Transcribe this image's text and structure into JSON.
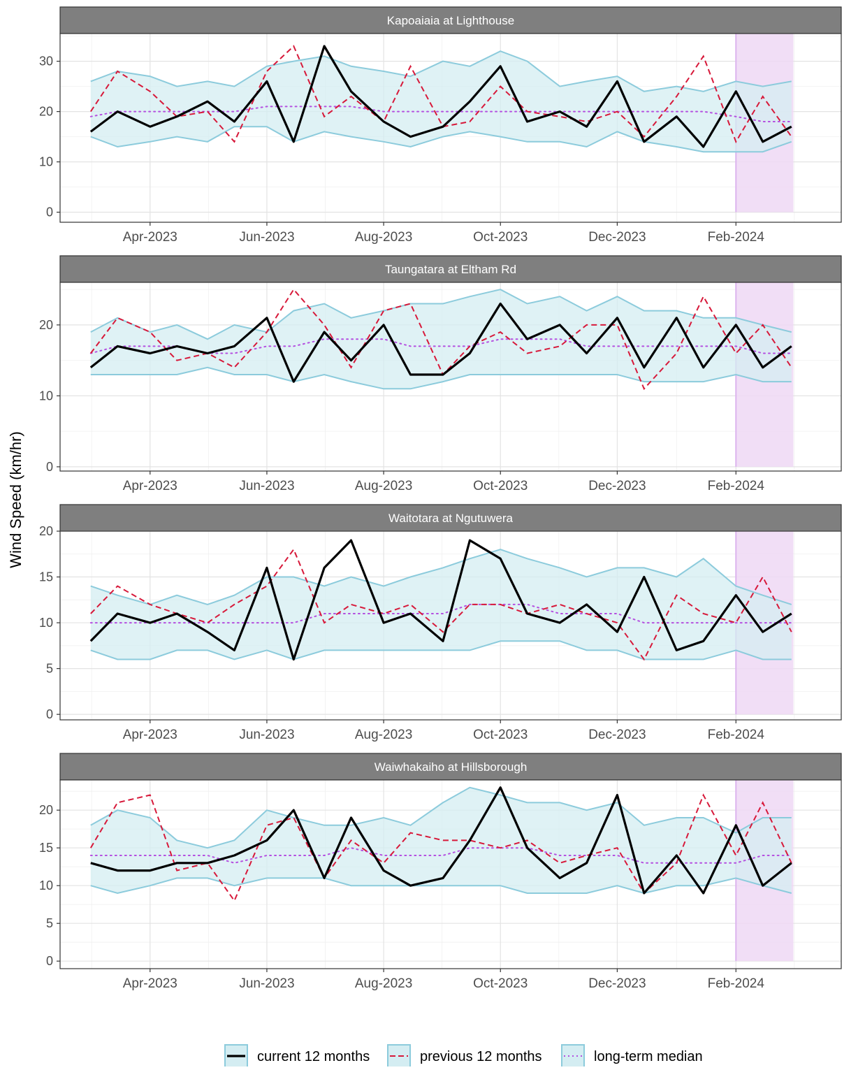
{
  "chart_data": {
    "type": "line",
    "ylabel": "Wind Speed (km/hr)",
    "x_range": [
      "2023-02-13",
      "2024-03-27"
    ],
    "x_ticks": [
      {
        "date": "2023-04-01",
        "label": "Apr-2023"
      },
      {
        "date": "2023-06-01",
        "label": "Jun-2023"
      },
      {
        "date": "2023-08-01",
        "label": "Aug-2023"
      },
      {
        "date": "2023-10-01",
        "label": "Oct-2023"
      },
      {
        "date": "2023-12-01",
        "label": "Dec-2023"
      },
      {
        "date": "2024-02-01",
        "label": "Feb-2024"
      }
    ],
    "highlight_period": {
      "start": "2024-02-01",
      "end": "2024-03-02",
      "color": "#eed8f5"
    },
    "series_styles": {
      "current": {
        "color": "#000000",
        "dash": "solid"
      },
      "previous": {
        "color": "#d7193a",
        "dash": "dashed"
      },
      "median": {
        "color": "#b44fe0",
        "dash": "dotted"
      },
      "band": {
        "fill": "#d4edf2",
        "stroke": "#8ccbdc"
      }
    },
    "legend": {
      "position": "bottom",
      "items": [
        {
          "key": "current",
          "label": "current 12 months"
        },
        {
          "key": "previous",
          "label": "previous 12 months"
        },
        {
          "key": "median",
          "label": "long-term median"
        }
      ]
    },
    "panels": [
      {
        "title": "Kapoaiaia at Lighthouse",
        "ylim": [
          -2,
          35.5
        ],
        "y_ticks": [
          0,
          10,
          20,
          30
        ],
        "x": [
          "2023-03-01",
          "2023-03-15",
          "2023-04-01",
          "2023-04-15",
          "2023-05-01",
          "2023-05-15",
          "2023-06-01",
          "2023-06-15",
          "2023-07-01",
          "2023-07-15",
          "2023-08-01",
          "2023-08-15",
          "2023-09-01",
          "2023-09-15",
          "2023-10-01",
          "2023-10-15",
          "2023-11-01",
          "2023-11-15",
          "2023-12-01",
          "2023-12-15",
          "2024-01-01",
          "2024-01-15",
          "2024-02-01",
          "2024-02-15",
          "2024-03-01"
        ],
        "current": [
          16,
          20,
          17,
          19,
          22,
          18,
          26,
          14,
          33,
          24,
          18,
          15,
          17,
          22,
          29,
          18,
          20,
          17,
          26,
          14,
          19,
          13,
          24,
          14,
          17
        ],
        "previous": [
          20,
          28,
          24,
          19,
          20,
          14,
          28,
          33,
          19,
          23,
          18,
          29,
          17,
          18,
          25,
          20,
          19,
          18,
          20,
          15,
          23,
          31,
          14,
          23,
          15
        ],
        "median": [
          19,
          20,
          20,
          20,
          20,
          20,
          21,
          21,
          21,
          21,
          20,
          20,
          20,
          20,
          20,
          20,
          20,
          20,
          20,
          20,
          20,
          20,
          19,
          18,
          18
        ],
        "band_low": [
          15,
          13,
          14,
          15,
          14,
          17,
          17,
          14,
          16,
          15,
          14,
          13,
          15,
          16,
          15,
          14,
          14,
          13,
          16,
          14,
          13,
          12,
          12,
          12,
          14
        ],
        "band_high": [
          26,
          28,
          27,
          25,
          26,
          25,
          29,
          30,
          31,
          29,
          28,
          27,
          30,
          29,
          32,
          30,
          25,
          26,
          27,
          24,
          25,
          24,
          26,
          25,
          26
        ]
      },
      {
        "title": "Taungatara at Eltham Rd",
        "ylim": [
          -0.6,
          26
        ],
        "y_ticks": [
          0,
          10,
          20
        ],
        "x": [
          "2023-03-01",
          "2023-03-15",
          "2023-04-01",
          "2023-04-15",
          "2023-05-01",
          "2023-05-15",
          "2023-06-01",
          "2023-06-15",
          "2023-07-01",
          "2023-07-15",
          "2023-08-01",
          "2023-08-15",
          "2023-09-01",
          "2023-09-15",
          "2023-10-01",
          "2023-10-15",
          "2023-11-01",
          "2023-11-15",
          "2023-12-01",
          "2023-12-15",
          "2024-01-01",
          "2024-01-15",
          "2024-02-01",
          "2024-02-15",
          "2024-03-01"
        ],
        "current": [
          14,
          17,
          16,
          17,
          16,
          17,
          21,
          12,
          19,
          15,
          20,
          13,
          13,
          16,
          23,
          18,
          20,
          16,
          21,
          14,
          21,
          14,
          20,
          14,
          17
        ],
        "previous": [
          16,
          21,
          19,
          15,
          16,
          14,
          19,
          25,
          20,
          14,
          22,
          23,
          13,
          17,
          19,
          16,
          17,
          20,
          20,
          11,
          16,
          24,
          16,
          20,
          14
        ],
        "median": [
          16,
          17,
          17,
          17,
          16,
          16,
          17,
          17,
          18,
          18,
          18,
          17,
          17,
          17,
          18,
          18,
          18,
          17,
          17,
          17,
          17,
          17,
          17,
          16,
          16
        ],
        "band_low": [
          13,
          13,
          13,
          13,
          14,
          13,
          13,
          12,
          13,
          12,
          11,
          11,
          12,
          13,
          13,
          13,
          13,
          13,
          13,
          12,
          12,
          12,
          13,
          12,
          12
        ],
        "band_high": [
          19,
          21,
          19,
          20,
          18,
          20,
          19,
          22,
          23,
          21,
          22,
          23,
          23,
          24,
          25,
          23,
          24,
          22,
          24,
          22,
          22,
          21,
          21,
          20,
          19
        ]
      },
      {
        "title": "Waitotara at Ngutuwera",
        "ylim": [
          -0.6,
          20
        ],
        "y_ticks": [
          0,
          5,
          10,
          15,
          20
        ],
        "x": [
          "2023-03-01",
          "2023-03-15",
          "2023-04-01",
          "2023-04-15",
          "2023-05-01",
          "2023-05-15",
          "2023-06-01",
          "2023-06-15",
          "2023-07-01",
          "2023-07-15",
          "2023-08-01",
          "2023-08-15",
          "2023-09-01",
          "2023-09-15",
          "2023-10-01",
          "2023-10-15",
          "2023-11-01",
          "2023-11-15",
          "2023-12-01",
          "2023-12-15",
          "2024-01-01",
          "2024-01-15",
          "2024-02-01",
          "2024-02-15",
          "2024-03-01"
        ],
        "current": [
          8,
          11,
          10,
          11,
          9,
          7,
          16,
          6,
          16,
          19,
          10,
          11,
          8,
          19,
          17,
          11,
          10,
          12,
          9,
          15,
          7,
          8,
          13,
          9,
          11
        ],
        "previous": [
          11,
          14,
          12,
          11,
          10,
          12,
          14,
          18,
          10,
          12,
          11,
          12,
          9,
          12,
          12,
          11,
          12,
          11,
          10,
          6,
          13,
          11,
          10,
          15,
          9
        ],
        "median": [
          10,
          10,
          10,
          10,
          10,
          10,
          10,
          10,
          11,
          11,
          11,
          11,
          11,
          12,
          12,
          12,
          11,
          11,
          11,
          10,
          10,
          10,
          10,
          10,
          10
        ],
        "band_low": [
          7,
          6,
          6,
          7,
          7,
          6,
          7,
          6,
          7,
          7,
          7,
          7,
          7,
          7,
          8,
          8,
          8,
          7,
          7,
          6,
          6,
          6,
          7,
          6,
          6
        ],
        "band_high": [
          14,
          13,
          12,
          13,
          12,
          13,
          15,
          15,
          14,
          15,
          14,
          15,
          16,
          17,
          18,
          17,
          16,
          15,
          16,
          16,
          15,
          17,
          14,
          13,
          12
        ]
      },
      {
        "title": "Waiwhakaiho at Hillsborough",
        "ylim": [
          -1,
          24
        ],
        "y_ticks": [
          0,
          5,
          10,
          15,
          20
        ],
        "x": [
          "2023-03-01",
          "2023-03-15",
          "2023-04-01",
          "2023-04-15",
          "2023-05-01",
          "2023-05-15",
          "2023-06-01",
          "2023-06-15",
          "2023-07-01",
          "2023-07-15",
          "2023-08-01",
          "2023-08-15",
          "2023-09-01",
          "2023-09-15",
          "2023-10-01",
          "2023-10-15",
          "2023-11-01",
          "2023-11-15",
          "2023-12-01",
          "2023-12-15",
          "2024-01-01",
          "2024-01-15",
          "2024-02-01",
          "2024-02-15",
          "2024-03-01"
        ],
        "current": [
          13,
          12,
          12,
          13,
          13,
          14,
          16,
          20,
          11,
          19,
          12,
          10,
          11,
          16,
          23,
          15,
          11,
          13,
          22,
          9,
          14,
          9,
          18,
          10,
          13
        ],
        "previous": [
          15,
          21,
          22,
          12,
          13,
          8,
          18,
          19,
          11,
          16,
          13,
          17,
          16,
          16,
          15,
          16,
          13,
          14,
          15,
          9,
          13,
          22,
          14,
          21,
          13
        ],
        "median": [
          14,
          14,
          14,
          14,
          14,
          13,
          14,
          14,
          14,
          15,
          14,
          14,
          14,
          15,
          15,
          15,
          14,
          14,
          14,
          13,
          13,
          13,
          13,
          14,
          14
        ],
        "band_low": [
          10,
          9,
          10,
          11,
          11,
          10,
          11,
          11,
          11,
          10,
          10,
          10,
          10,
          10,
          10,
          9,
          9,
          9,
          10,
          9,
          10,
          10,
          11,
          10,
          9
        ],
        "band_high": [
          18,
          20,
          19,
          16,
          15,
          16,
          20,
          19,
          18,
          18,
          19,
          18,
          21,
          23,
          22,
          21,
          21,
          20,
          21,
          18,
          19,
          19,
          17,
          19,
          19
        ]
      }
    ]
  }
}
